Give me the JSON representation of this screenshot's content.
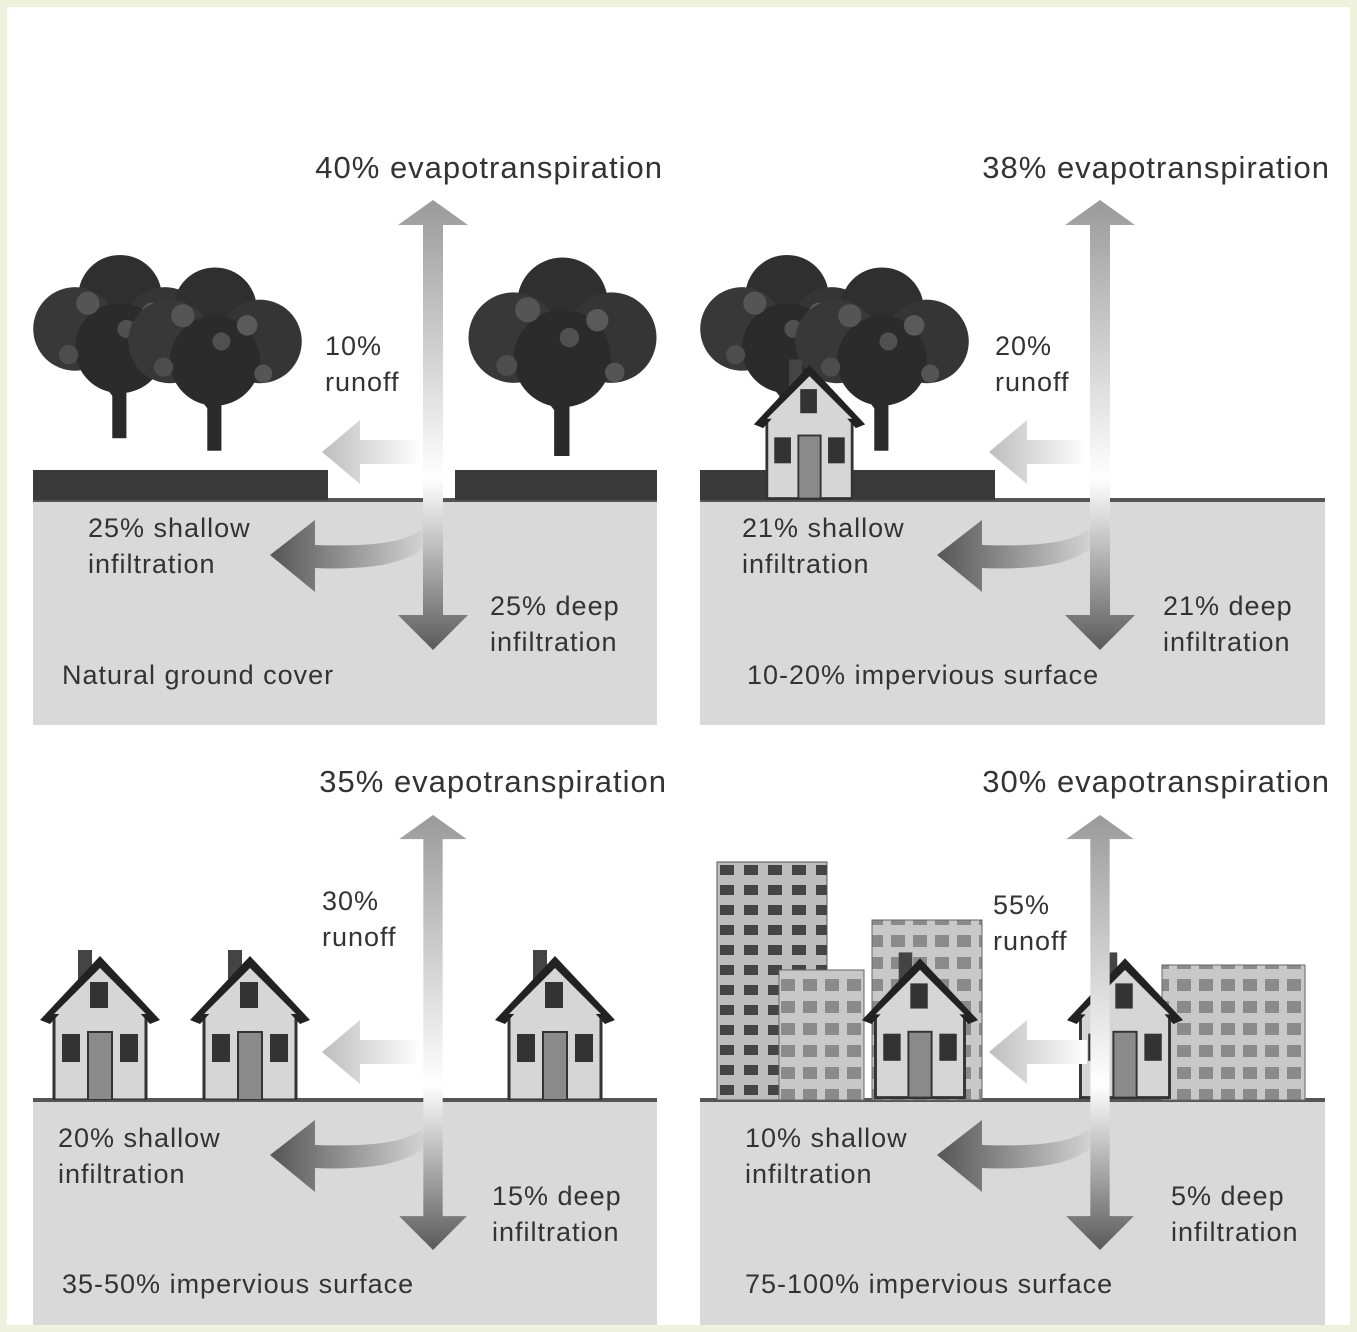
{
  "panels": [
    {
      "evapotranspiration": "40% evapotranspiration",
      "runoff": [
        "10%",
        "runoff"
      ],
      "shallow_infiltration": [
        "25% shallow",
        "infiltration"
      ],
      "deep_infiltration": [
        "25% deep",
        "infiltration"
      ],
      "surface": "Natural ground cover"
    },
    {
      "evapotranspiration": "38% evapotranspiration",
      "runoff": [
        "20%",
        "runoff"
      ],
      "shallow_infiltration": [
        "21% shallow",
        "infiltration"
      ],
      "deep_infiltration": [
        "21% deep",
        "infiltration"
      ],
      "surface": "10-20% impervious surface"
    },
    {
      "evapotranspiration": "35% evapotranspiration",
      "runoff": [
        "30%",
        "runoff"
      ],
      "shallow_infiltration": [
        "20% shallow",
        "infiltration"
      ],
      "deep_infiltration": [
        "15% deep",
        "infiltration"
      ],
      "surface": "35-50% impervious surface"
    },
    {
      "evapotranspiration": "30% evapotranspiration",
      "runoff": [
        "55%",
        "runoff"
      ],
      "shallow_infiltration": [
        "10% shallow",
        "infiltration"
      ],
      "deep_infiltration": [
        "5% deep",
        "infiltration"
      ],
      "surface": "75-100% impervious surface"
    }
  ]
}
